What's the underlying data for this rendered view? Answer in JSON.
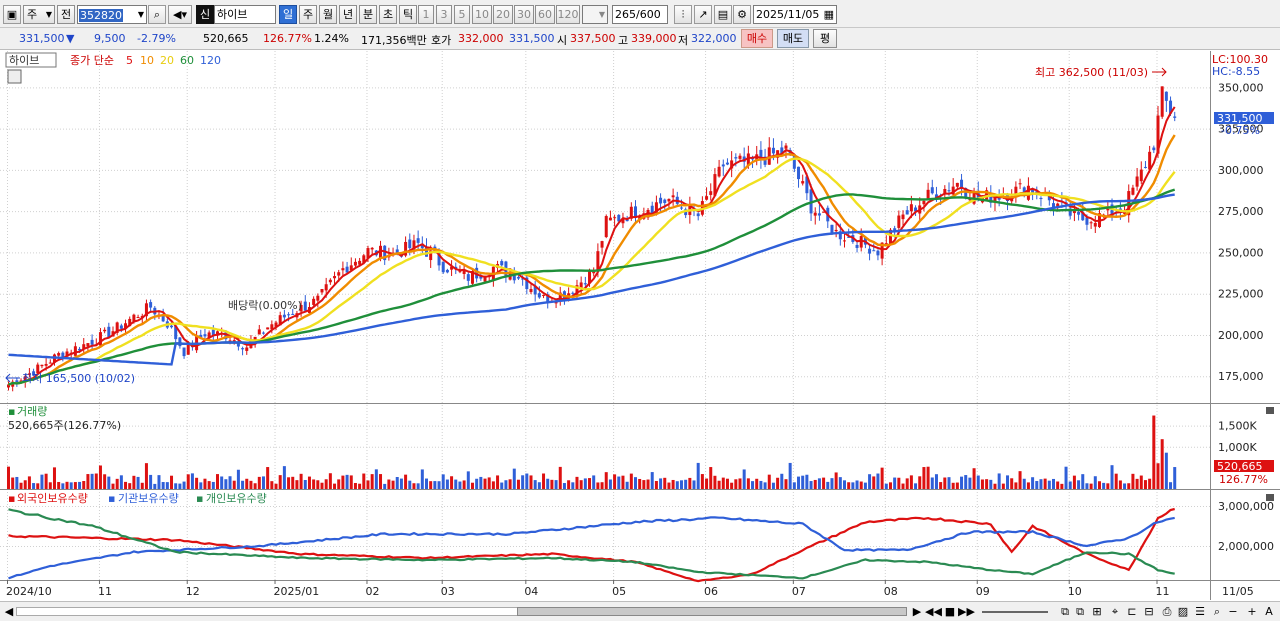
{
  "toolbar": {
    "market": "주",
    "period_mode": "전",
    "code": "352820",
    "credit_badge": "신",
    "stock_name": "하이브",
    "periods": [
      "일",
      "주",
      "월",
      "년",
      "분",
      "초",
      "틱"
    ],
    "intervals": [
      "1",
      "3",
      "5",
      "10",
      "20",
      "30",
      "60",
      "120"
    ],
    "count": "265",
    "count_total": "/600",
    "date": "2025/11/05"
  },
  "quote": {
    "price": "331,500",
    "change_arrow": "▼",
    "change": "9,500",
    "change_pct": "-2.79%",
    "volume": "520,665",
    "volume_ratio": "126.77%",
    "turnover": "1.24%",
    "amount": "171,356백만",
    "bid_label": "호가",
    "bid": "332,000",
    "ask": "331,500",
    "open_label": "시",
    "open": "337,500",
    "high_label": "고",
    "high": "339,000",
    "low_label": "저",
    "low": "322,000",
    "buy_label": "매수",
    "sell_label": "매도",
    "eval_label": "평"
  },
  "price_panel": {
    "name": "하이브",
    "ma_label": "종가 단순",
    "ma_periods": [
      "5",
      "10",
      "20",
      "60",
      "120"
    ],
    "ma_colors": [
      "#dd1111",
      "#f08c00",
      "#f0e020",
      "#1f8f3a",
      "#2f5fd8"
    ],
    "lc_text": "LC:100.30",
    "hc_text": "HC:-8.55",
    "max_text": "최고 362,500 (11/03)",
    "min_text": "최저 165,500 (10/02)",
    "dividend_text": "배당락(0.00%)",
    "last_price": "331,500",
    "last_pct": "-0.75%",
    "y_ticks": [
      "350,000",
      "325,000",
      "300,000",
      "275,000",
      "250,000",
      "225,000",
      "200,000",
      "175,000"
    ]
  },
  "volume_panel": {
    "title": "거래량",
    "info": "520,665주(126.77%)",
    "y_ticks": [
      "1,500K",
      "1,000K"
    ],
    "last_value": "520,665",
    "last_pct": "126.77%"
  },
  "holding_panel": {
    "legend": [
      "외국인보유수량",
      "기관보유수량",
      "개인보유수량"
    ],
    "colors": [
      "#dd1111",
      "#2f5fd8",
      "#2a8a52"
    ],
    "y_ticks": [
      "3,000,000",
      "2,000,000"
    ]
  },
  "x_axis": {
    "labels": [
      "2024/10",
      "11",
      "12",
      "2025/01",
      "02",
      "03",
      "04",
      "05",
      "06",
      "07",
      "08",
      "09",
      "10",
      "11"
    ],
    "right_label": "11/05"
  },
  "chart_data": {
    "type": "candlestick",
    "ylim": [
      160000,
      372000
    ],
    "price_anchors": [
      [
        0,
        170000
      ],
      [
        6,
        178000
      ],
      [
        12,
        188000
      ],
      [
        18,
        194000
      ],
      [
        24,
        201000
      ],
      [
        30,
        211000
      ],
      [
        34,
        217000
      ],
      [
        38,
        207000
      ],
      [
        42,
        190000
      ],
      [
        47,
        201000
      ],
      [
        52,
        200000
      ],
      [
        57,
        193000
      ],
      [
        62,
        205000
      ],
      [
        68,
        214000
      ],
      [
        74,
        221000
      ],
      [
        80,
        240000
      ],
      [
        86,
        251000
      ],
      [
        92,
        249000
      ],
      [
        98,
        255000
      ],
      [
        104,
        242000
      ],
      [
        110,
        235000
      ],
      [
        116,
        241000
      ],
      [
        122,
        236000
      ],
      [
        128,
        222000
      ],
      [
        134,
        226000
      ],
      [
        140,
        239000
      ],
      [
        143,
        268000
      ],
      [
        150,
        275000
      ],
      [
        158,
        282000
      ],
      [
        165,
        272000
      ],
      [
        171,
        303000
      ],
      [
        178,
        305000
      ],
      [
        186,
        312000
      ],
      [
        192,
        278000
      ],
      [
        198,
        262000
      ],
      [
        203,
        257000
      ],
      [
        208,
        251000
      ],
      [
        214,
        272000
      ],
      [
        220,
        284000
      ],
      [
        227,
        292000
      ],
      [
        232,
        283000
      ],
      [
        238,
        285000
      ],
      [
        244,
        290000
      ],
      [
        250,
        280000
      ],
      [
        256,
        270000
      ],
      [
        262,
        272000
      ],
      [
        267,
        278000
      ],
      [
        271,
        298000
      ],
      [
        274,
        316000
      ],
      [
        276,
        345000
      ],
      [
        279,
        331500
      ]
    ],
    "volume_ylim": [
      0,
      1800
    ],
    "volume_unit": "K",
    "holding_ylim": [
      1150000,
      3300000
    ],
    "holding_series": [
      {
        "name": "외국인보유수량",
        "anchors": [
          [
            0,
            2250000
          ],
          [
            40,
            2150000
          ],
          [
            70,
            1800000
          ],
          [
            100,
            1700000
          ],
          [
            130,
            1800000
          ],
          [
            150,
            1600000
          ],
          [
            165,
            1120000
          ],
          [
            178,
            1300000
          ],
          [
            190,
            1900000
          ],
          [
            205,
            2600000
          ],
          [
            220,
            2700000
          ],
          [
            235,
            2550000
          ],
          [
            240,
            1850000
          ],
          [
            245,
            2500000
          ],
          [
            258,
            1800000
          ],
          [
            268,
            1400000
          ],
          [
            275,
            2700000
          ],
          [
            279,
            2950000
          ]
        ]
      },
      {
        "name": "기관보유수량",
        "anchors": [
          [
            0,
            1200000
          ],
          [
            10,
            1500000
          ],
          [
            30,
            1850000
          ],
          [
            60,
            2000000
          ],
          [
            90,
            2300000
          ],
          [
            120,
            2300000
          ],
          [
            150,
            2600000
          ],
          [
            170,
            2700000
          ],
          [
            190,
            2550000
          ],
          [
            200,
            1900000
          ],
          [
            215,
            1900000
          ],
          [
            230,
            2350000
          ],
          [
            245,
            2350000
          ],
          [
            258,
            2000000
          ],
          [
            268,
            2200000
          ],
          [
            275,
            2600000
          ],
          [
            279,
            2700000
          ]
        ]
      },
      {
        "name": "개인보유수량",
        "anchors": [
          [
            0,
            2900000
          ],
          [
            20,
            2500000
          ],
          [
            40,
            1850000
          ],
          [
            70,
            1700000
          ],
          [
            100,
            1650000
          ],
          [
            130,
            1700000
          ],
          [
            150,
            1600000
          ],
          [
            165,
            1350000
          ],
          [
            190,
            1200000
          ],
          [
            205,
            1650000
          ],
          [
            220,
            1600000
          ],
          [
            235,
            1400000
          ],
          [
            245,
            1300000
          ],
          [
            258,
            1850000
          ],
          [
            268,
            1800000
          ],
          [
            275,
            1400000
          ],
          [
            279,
            1300000
          ]
        ]
      }
    ]
  }
}
